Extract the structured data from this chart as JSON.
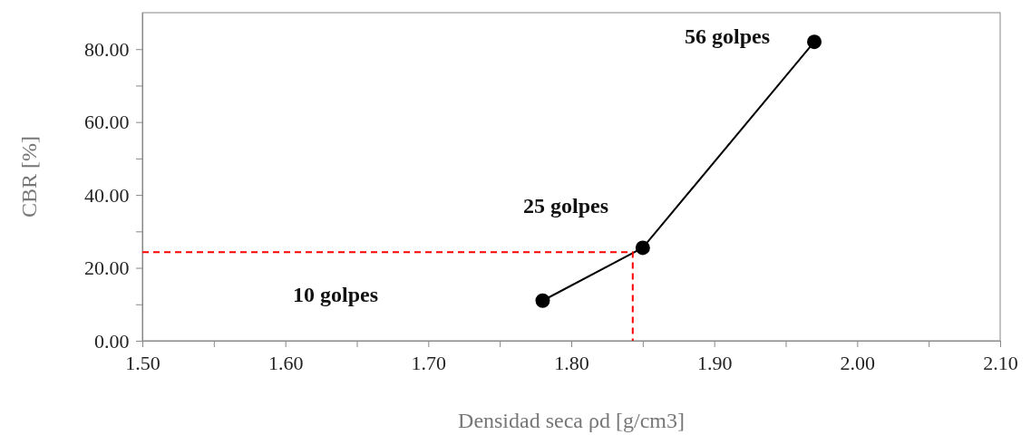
{
  "chart_data": {
    "type": "line",
    "xlabel": "Densidad seca ρd [g/cm3]",
    "ylabel": "CBR [%]",
    "xlim": [
      1.5,
      2.1
    ],
    "ylim": [
      0,
      90
    ],
    "xticks": [
      {
        "value": 1.5,
        "label": "1.50"
      },
      {
        "value": 1.55,
        "label": null
      },
      {
        "value": 1.6,
        "label": "1.60"
      },
      {
        "value": 1.65,
        "label": null
      },
      {
        "value": 1.7,
        "label": "1.70"
      },
      {
        "value": 1.75,
        "label": null
      },
      {
        "value": 1.8,
        "label": "1.80"
      },
      {
        "value": 1.85,
        "label": null
      },
      {
        "value": 1.9,
        "label": "1.90"
      },
      {
        "value": 1.95,
        "label": null
      },
      {
        "value": 2.0,
        "label": "2.00"
      },
      {
        "value": 2.05,
        "label": null
      },
      {
        "value": 2.1,
        "label": "2.10"
      }
    ],
    "yticks": [
      {
        "value": 0,
        "label": "0.00"
      },
      {
        "value": 10,
        "label": null
      },
      {
        "value": 20,
        "label": "20.00"
      },
      {
        "value": 30,
        "label": null
      },
      {
        "value": 40,
        "label": "40.00"
      },
      {
        "value": 50,
        "label": null
      },
      {
        "value": 60,
        "label": "60.00"
      },
      {
        "value": 70,
        "label": null
      },
      {
        "value": 80,
        "label": "80.00"
      }
    ],
    "grid": false,
    "series": [
      {
        "color": "#000000",
        "x": [
          1.78,
          1.85,
          1.97
        ],
        "values": [
          11,
          25.5,
          82
        ],
        "marker": "circle",
        "line_style": "solid"
      },
      {
        "color": "#ff0000",
        "x": [
          1.5,
          1.843,
          1.843
        ],
        "values": [
          24.3,
          24.3,
          0
        ],
        "marker": "none",
        "line_style": "dashed"
      }
    ],
    "annotations": [
      "56 golpes",
      "25 golpes",
      "10 golpes"
    ]
  }
}
